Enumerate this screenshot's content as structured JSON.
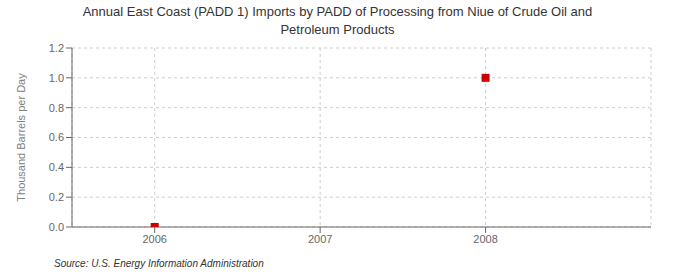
{
  "chart_data": {
    "type": "scatter",
    "title": "Annual East Coast (PADD 1) Imports by PADD of Processing from Niue of Crude Oil and\nPetroleum Products",
    "ylabel": "Thousand Barrels per Day",
    "annotations": [
      "Source: U.S. Energy Information Administration"
    ],
    "x": [
      2006,
      2008
    ],
    "values": [
      0.0,
      1.0
    ],
    "color": "#cc0000",
    "marker": "square",
    "xlim": [
      2005.5,
      2009.0
    ],
    "xticks": [
      2006,
      2007,
      2008
    ],
    "ylim": [
      0.0,
      1.2
    ],
    "yticks": [
      {
        "value": 0.0,
        "label": "0.0"
      },
      0.2,
      0.4,
      0.6,
      0.8,
      {
        "value": 1.0,
        "label": "1.0"
      },
      1.2
    ],
    "grid": true
  }
}
